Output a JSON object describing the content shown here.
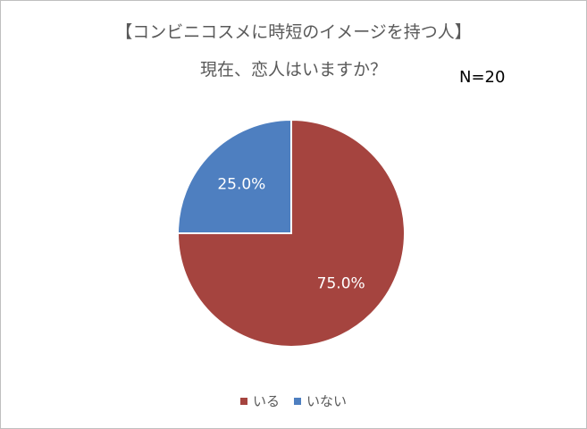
{
  "chart_data": {
    "type": "pie",
    "title_line1": "【コンビニコスメに時短のイメージを持つ人】",
    "title_line2": "現在、恋人はいますか？",
    "annotation": "N=20",
    "slices": [
      {
        "name": "いる",
        "value": 75.0,
        "label": "75.0%",
        "color": "#a5443f"
      },
      {
        "name": "いない",
        "value": 25.0,
        "label": "25.0%",
        "color": "#4e7fc0"
      }
    ],
    "start_angle": "12 o'clock",
    "direction": "clockwise",
    "legend_position": "bottom"
  }
}
